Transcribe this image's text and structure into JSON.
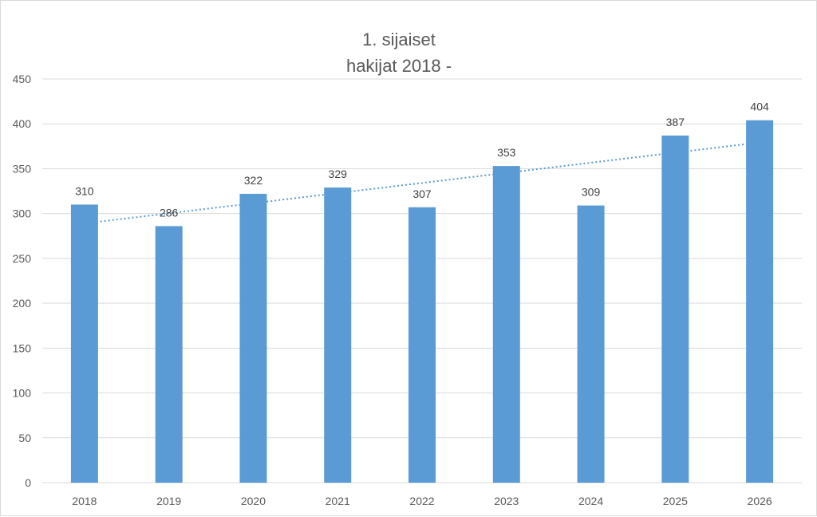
{
  "chart_data": {
    "type": "bar",
    "title_lines": [
      "1. sijaiset",
      "hakijat 2018 -"
    ],
    "categories": [
      "2018",
      "2019",
      "2020",
      "2021",
      "2022",
      "2023",
      "2024",
      "2025",
      "2026"
    ],
    "values": [
      310,
      286,
      322,
      329,
      307,
      353,
      309,
      387,
      404
    ],
    "ylim": [
      0,
      450
    ],
    "yticks": [
      0,
      50,
      100,
      150,
      200,
      250,
      300,
      350,
      400,
      450
    ],
    "grid": true,
    "data_labels": true,
    "trendline": {
      "type": "linear",
      "style": "dotted"
    },
    "colors": {
      "bar": "#5b9bd5",
      "trend": "#5b9bd5",
      "grid": "#d9d9d9"
    }
  }
}
